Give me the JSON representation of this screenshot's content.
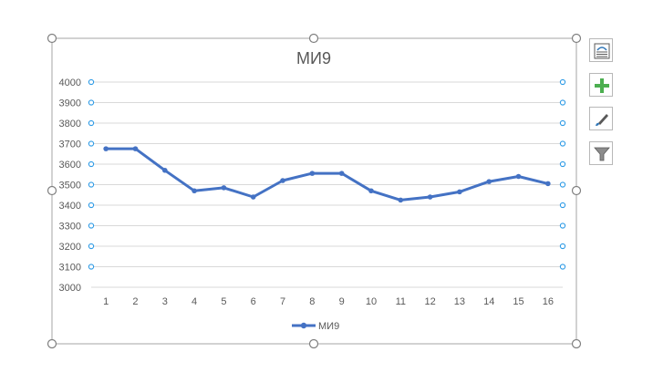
{
  "chart_data": {
    "type": "line",
    "title": "МИ9",
    "xlabel": "",
    "ylabel": "",
    "categories": [
      "1",
      "2",
      "3",
      "4",
      "5",
      "6",
      "7",
      "8",
      "9",
      "10",
      "11",
      "12",
      "13",
      "14",
      "15",
      "16"
    ],
    "series": [
      {
        "name": "МИ9",
        "values": [
          3675,
          3675,
          3570,
          3470,
          3485,
          3440,
          3520,
          3555,
          3555,
          3470,
          3425,
          3440,
          3465,
          3515,
          3540,
          3505
        ]
      }
    ],
    "ylim": [
      3000,
      4000
    ],
    "yticks": [
      3000,
      3100,
      3200,
      3300,
      3400,
      3500,
      3600,
      3700,
      3800,
      3900,
      4000
    ],
    "grid": true,
    "legend": "bottom",
    "line_color": "#4472c4",
    "grid_color": "#d9d9d9",
    "label_color": "#595959"
  },
  "side_buttons": {
    "layout_icon": "chart-layout-icon",
    "elements_icon": "plus-icon",
    "styles_icon": "brush-icon",
    "filter_icon": "funnel-icon",
    "plus_color": "#4caf50"
  }
}
